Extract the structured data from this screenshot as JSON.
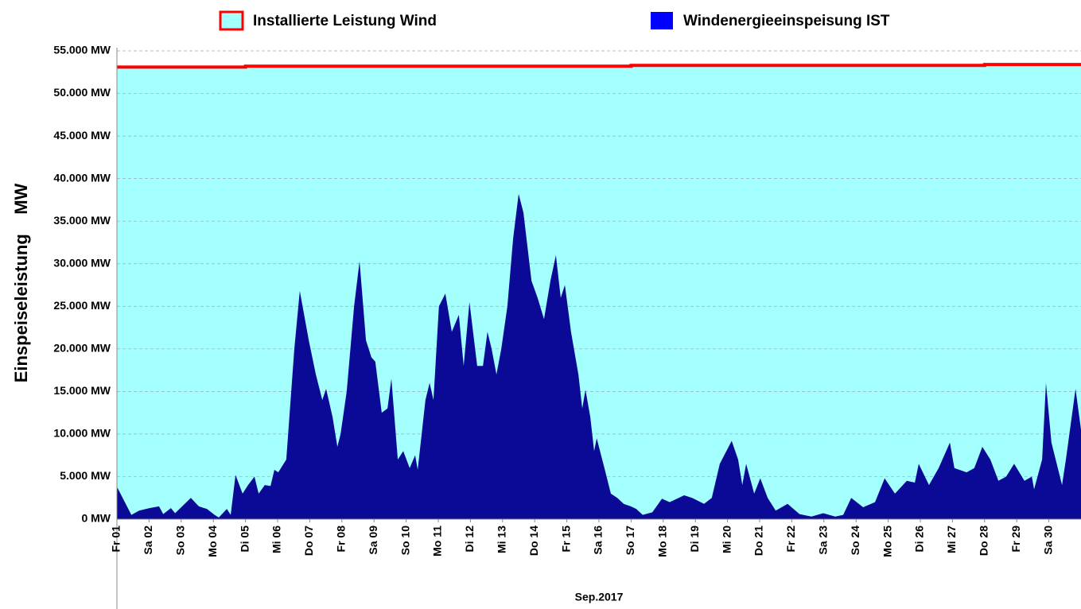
{
  "chart_data": {
    "type": "area",
    "ylabel": "Einspeiseleistung    MW",
    "xlabel": "Sep.2017",
    "xlim": [
      0,
      30
    ],
    "xticks": [
      {
        "value": 0,
        "label": "Fr 01"
      },
      {
        "value": 1,
        "label": "Sa 02"
      },
      {
        "value": 2,
        "label": "So 03"
      },
      {
        "value": 3,
        "label": "Mo 04"
      },
      {
        "value": 4,
        "label": "Di 05"
      },
      {
        "value": 5,
        "label": "Mi 06"
      },
      {
        "value": 6,
        "label": "Do 07"
      },
      {
        "value": 7,
        "label": "Fr 08"
      },
      {
        "value": 8,
        "label": "Sa 09"
      },
      {
        "value": 9,
        "label": "So 10"
      },
      {
        "value": 10,
        "label": "Mo 11"
      },
      {
        "value": 11,
        "label": "Di 12"
      },
      {
        "value": 12,
        "label": "Mi 13"
      },
      {
        "value": 13,
        "label": "Do 14"
      },
      {
        "value": 14,
        "label": "Fr 15"
      },
      {
        "value": 15,
        "label": "Sa 16"
      },
      {
        "value": 16,
        "label": "So 17"
      },
      {
        "value": 17,
        "label": "Mo 18"
      },
      {
        "value": 18,
        "label": "Di 19"
      },
      {
        "value": 19,
        "label": "Mi 20"
      },
      {
        "value": 20,
        "label": "Do 21"
      },
      {
        "value": 21,
        "label": "Fr 22"
      },
      {
        "value": 22,
        "label": "Sa 23"
      },
      {
        "value": 23,
        "label": "So 24"
      },
      {
        "value": 24,
        "label": "Mo 25"
      },
      {
        "value": 25,
        "label": "Di 26"
      },
      {
        "value": 26,
        "label": "Mi 27"
      },
      {
        "value": 27,
        "label": "Do 28"
      },
      {
        "value": 28,
        "label": "Fr 29"
      },
      {
        "value": 29,
        "label": "Sa 30"
      }
    ],
    "ylim": [
      0,
      55000
    ],
    "yticks": [
      {
        "value": 0,
        "label": "0 MW"
      },
      {
        "value": 5000,
        "label": "5.000 MW"
      },
      {
        "value": 10000,
        "label": "10.000 MW"
      },
      {
        "value": 15000,
        "label": "15.000 MW"
      },
      {
        "value": 20000,
        "label": "20.000 MW"
      },
      {
        "value": 25000,
        "label": "25.000 MW"
      },
      {
        "value": 30000,
        "label": "30.000 MW"
      },
      {
        "value": 35000,
        "label": "35.000 MW"
      },
      {
        "value": 40000,
        "label": "40.000 MW"
      },
      {
        "value": 45000,
        "label": "45.000 MW"
      },
      {
        "value": 50000,
        "label": "50.000 MW"
      },
      {
        "value": 55000,
        "label": "55.000 MW"
      }
    ],
    "grid": true,
    "legend": "top",
    "series": [
      {
        "name": "Installierte Leistung Wind",
        "color": "#ff0000",
        "fill": "#a4ffff",
        "x": [
          0,
          4,
          4,
          16,
          16,
          27,
          27,
          30
        ],
        "values": [
          53100,
          53100,
          53200,
          53200,
          53300,
          53300,
          53400,
          53400
        ]
      },
      {
        "name": "Windenergieeinspeisung IST",
        "color": "#0a0a96",
        "legend_color": "#0000ff",
        "x": [
          0,
          0.45,
          0.69,
          1.01,
          1.31,
          1.44,
          1.68,
          1.81,
          2.3,
          2.55,
          2.8,
          3.04,
          3.17,
          3.42,
          3.54,
          3.69,
          3.91,
          4.08,
          4.28,
          4.41,
          4.6,
          4.78,
          4.9,
          5.02,
          5.27,
          5.52,
          5.69,
          5.97,
          6.19,
          6.39,
          6.51,
          6.71,
          6.86,
          6.96,
          7.15,
          7.38,
          7.55,
          7.75,
          7.92,
          8.04,
          8.24,
          8.42,
          8.54,
          8.74,
          8.91,
          9.11,
          9.28,
          9.36,
          9.6,
          9.73,
          9.85,
          10.02,
          10.22,
          10.42,
          10.64,
          10.79,
          10.97,
          11.21,
          11.39,
          11.53,
          11.66,
          11.81,
          11.96,
          12.15,
          12.33,
          12.5,
          12.65,
          12.9,
          13.09,
          13.29,
          13.49,
          13.66,
          13.81,
          13.94,
          14.13,
          14.36,
          14.48,
          14.58,
          14.73,
          14.85,
          14.93,
          15.17,
          15.37,
          15.57,
          15.77,
          15.99,
          16.16,
          16.36,
          16.66,
          16.96,
          17.2,
          17.65,
          17.9,
          18.27,
          18.51,
          18.76,
          19.13,
          19.33,
          19.46,
          19.58,
          19.83,
          20.02,
          20.25,
          20.5,
          20.87,
          21.24,
          21.61,
          21.98,
          22.35,
          22.6,
          22.85,
          23.22,
          23.59,
          23.89,
          24.21,
          24.58,
          24.83,
          24.95,
          25.27,
          25.57,
          25.92,
          26.06,
          26.44,
          26.68,
          26.93,
          27.18,
          27.43,
          27.67,
          27.92,
          28.24,
          28.47,
          28.54,
          28.79,
          28.91,
          29.08,
          29.41,
          29.53,
          29.83,
          30
        ],
        "values": [
          3800,
          500,
          1000,
          1300,
          1500,
          600,
          1300,
          700,
          2500,
          1500,
          1200,
          500,
          200,
          1200,
          500,
          5200,
          3000,
          4000,
          5000,
          3000,
          4000,
          3900,
          5800,
          5500,
          7000,
          20000,
          26800,
          21000,
          17000,
          14000,
          15300,
          12000,
          8500,
          10000,
          15000,
          25000,
          30300,
          21000,
          19000,
          18500,
          12500,
          13000,
          16500,
          7000,
          8000,
          6000,
          7500,
          5800,
          14000,
          16000,
          14000,
          25000,
          26500,
          22000,
          24000,
          18000,
          25500,
          18000,
          18000,
          22000,
          20000,
          17000,
          20000,
          25000,
          33000,
          38200,
          36000,
          28000,
          26000,
          23500,
          28000,
          31000,
          26000,
          27500,
          22000,
          17000,
          13000,
          15200,
          12000,
          8000,
          9500,
          6000,
          3000,
          2500,
          1800,
          1500,
          1200,
          500,
          800,
          2400,
          2000,
          2800,
          2500,
          1800,
          2500,
          6500,
          9200,
          7000,
          4000,
          6500,
          3000,
          4800,
          2500,
          1000,
          1800,
          600,
          300,
          700,
          300,
          500,
          2500,
          1400,
          2000,
          4800,
          3000,
          4500,
          4300,
          6500,
          4000,
          6000,
          9000,
          6000,
          5500,
          6000,
          8500,
          7000,
          4500,
          5000,
          6500,
          4500,
          5000,
          3500,
          7000,
          16000,
          9000,
          4000,
          7000,
          15300,
          10500
        ]
      }
    ]
  }
}
